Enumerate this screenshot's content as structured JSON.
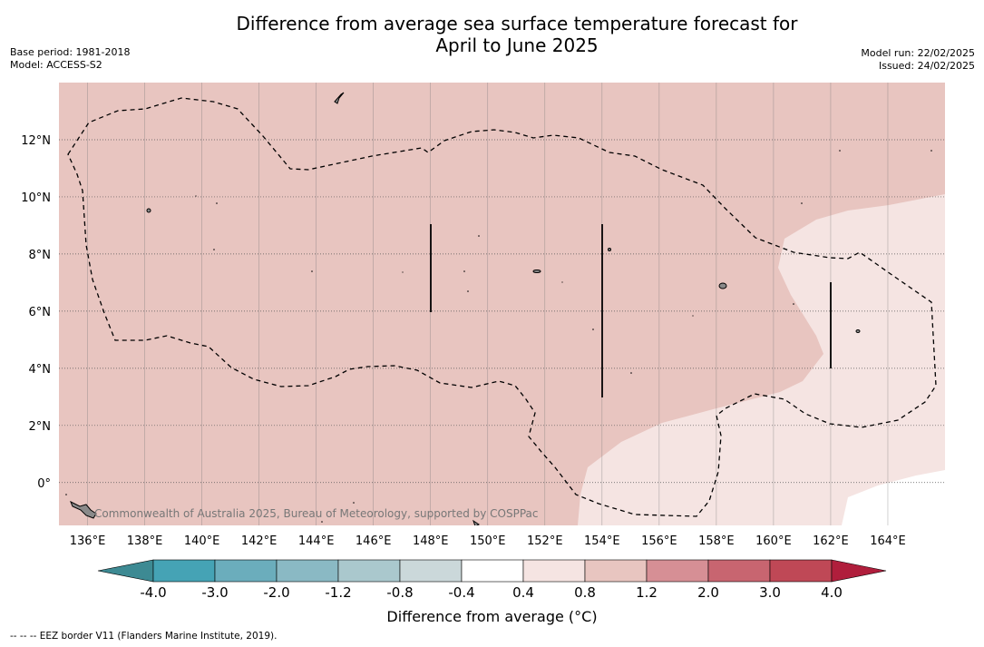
{
  "title": {
    "line1": "Difference from average sea surface temperature forecast for",
    "line2": "April to June 2025"
  },
  "meta": {
    "base_period": "Base period: 1981-2018",
    "model": "Model: ACCESS-S2",
    "model_run": "Model run: 22/02/2025",
    "issued": "Issued: 24/02/2025"
  },
  "map": {
    "lon_labels": [
      "136°E",
      "138°E",
      "140°E",
      "142°E",
      "144°E",
      "146°E",
      "148°E",
      "150°E",
      "152°E",
      "154°E",
      "156°E",
      "158°E",
      "160°E",
      "162°E",
      "164°E"
    ],
    "lat_labels": [
      "12°N",
      "10°N",
      "8°N",
      "6°N",
      "4°N",
      "2°N",
      "0°"
    ],
    "lon_values": [
      136,
      138,
      140,
      142,
      144,
      146,
      148,
      150,
      152,
      154,
      156,
      158,
      160,
      162,
      164
    ],
    "lat_values": [
      12,
      10,
      8,
      6,
      4,
      2,
      0
    ],
    "lon_range": [
      135.0,
      166.0
    ],
    "lat_range": [
      -1.5,
      14.0
    ],
    "gridlines": true,
    "copyright": "Commonwealth of Australia 2025, Bureau of Meteorology, supported by COSPPac"
  },
  "colorbar": {
    "ticks": [
      "-4.0",
      "-3.0",
      "-2.0",
      "-1.2",
      "-0.8",
      "-0.4",
      "0.4",
      "0.8",
      "1.2",
      "2.0",
      "3.0",
      "4.0"
    ],
    "colors": [
      "#45a3b5",
      "#6badbc",
      "#8ab9c4",
      "#aac8cd",
      "#cbd8da",
      "#ffffff",
      "#f5e4e2",
      "#e8c5c0",
      "#d68f95",
      "#c86570",
      "#bf4856"
    ],
    "under_color": "#3d8a93",
    "over_color": "#b01e3c",
    "label": "Difference from average (°C)"
  },
  "colors": {
    "anomaly_0.8_1.2": "#e8c5c0",
    "anomaly_0.4_0.8": "#f5e4e2",
    "anomaly_neutral": "#ffffff"
  },
  "footnote": "--  --  -- EEZ border V11 (Flanders Marine Institute, 2019)."
}
